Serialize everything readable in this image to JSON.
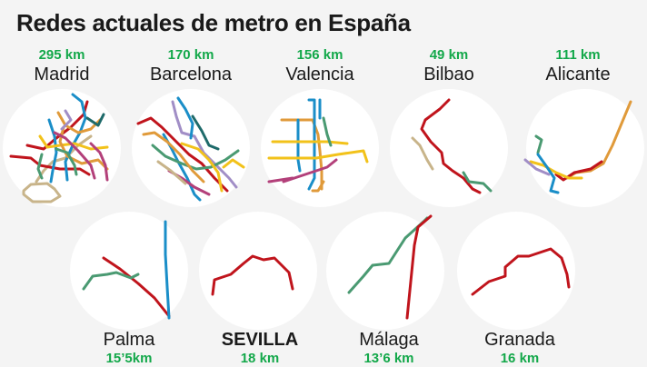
{
  "header": {
    "title": "Redes actuales de metro en España"
  },
  "colors": {
    "km_text": "#13a84a",
    "circle_fill": "#ffffff",
    "background": "#f4f4f4",
    "line_red": "#c0141c",
    "line_green": "#4a9a72",
    "line_tan": "#c8b48a",
    "line_orange": "#e09a3a",
    "line_blue": "#1a8ec8",
    "line_yellow": "#f2c21a",
    "line_purple": "#a18ec6",
    "line_magenta": "#b3407a",
    "line_dark_teal": "#1e6a6a"
  },
  "networks": [
    {
      "id": "madrid",
      "city": "Madrid",
      "km": "295 km",
      "bold_city": false
    },
    {
      "id": "barcelona",
      "city": "Barcelona",
      "km": "170 km",
      "bold_city": false
    },
    {
      "id": "valencia",
      "city": "Valencia",
      "km": "156 km",
      "bold_city": false
    },
    {
      "id": "bilbao",
      "city": "Bilbao",
      "km": "49 km",
      "bold_city": false
    },
    {
      "id": "alicante",
      "city": "Alicante",
      "km": "111 km",
      "bold_city": false
    },
    {
      "id": "palma",
      "city": "Palma",
      "km": "15’5km",
      "bold_city": false
    },
    {
      "id": "sevilla",
      "city": "SEVILLA",
      "km": "18 km",
      "bold_city": true
    },
    {
      "id": "malaga",
      "city": "Málaga",
      "km": "13’6 km",
      "bold_city": false
    },
    {
      "id": "granada",
      "city": "Granada",
      "km": "16 km",
      "bold_city": false
    }
  ]
}
